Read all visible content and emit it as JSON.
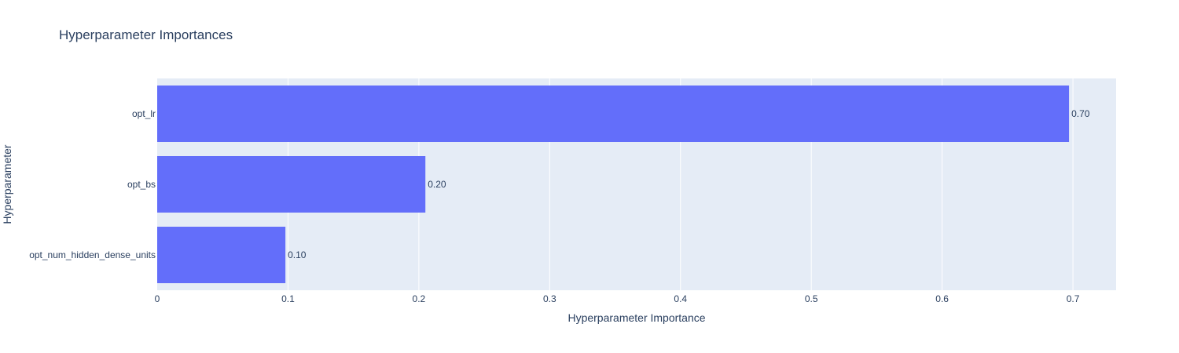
{
  "chart_data": {
    "type": "bar",
    "orientation": "horizontal",
    "title": "Hyperparameter Importances",
    "xlabel": "Hyperparameter Importance",
    "ylabel": "Hyperparameter",
    "categories": [
      "opt_num_hidden_dense_units",
      "opt_bs",
      "opt_lr"
    ],
    "values": [
      0.098,
      0.205,
      0.697
    ],
    "data_labels": [
      "0.10",
      "0.20",
      "0.70"
    ],
    "xlim": [
      0,
      0.733
    ],
    "x_ticks": [
      0,
      0.1,
      0.2,
      0.3,
      0.4,
      0.5,
      0.6,
      0.7
    ],
    "x_tick_labels": [
      "0",
      "0.1",
      "0.2",
      "0.3",
      "0.4",
      "0.5",
      "0.6",
      "0.7"
    ],
    "grid": true,
    "legend": false,
    "colors": {
      "bar": "#636efa",
      "plot_background": "#e5ecf6",
      "grid": "#ffffff",
      "text": "#2a3f5f"
    }
  }
}
